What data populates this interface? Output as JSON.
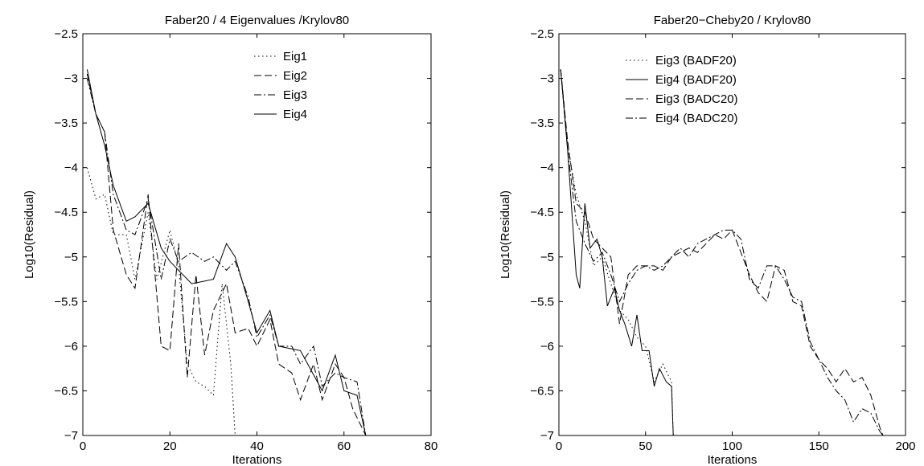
{
  "chart_data": [
    {
      "type": "line",
      "title": "Faber20 / 4 Eigenvalues /Krylov80",
      "xlabel": "Iterations",
      "ylabel": "Log10(Residual)",
      "xlim": [
        0,
        80
      ],
      "ylim": [
        -7,
        -2.5
      ],
      "xticks": [
        0,
        20,
        40,
        60,
        80
      ],
      "yticks": [
        -2.5,
        -3,
        -3.5,
        -4,
        -4.5,
        -5,
        -5.5,
        -6,
        -6.5,
        -7
      ],
      "grid": false,
      "legend_position": "top-right",
      "series": [
        {
          "name": "Eig1",
          "style": "dotted",
          "x": [
            1,
            3,
            5,
            7,
            10,
            12,
            15,
            17,
            20,
            22,
            24,
            26,
            28,
            30,
            32,
            34,
            35
          ],
          "y": [
            -4.0,
            -4.35,
            -4.3,
            -4.75,
            -4.75,
            -5.25,
            -4.5,
            -5.25,
            -4.7,
            -5.1,
            -6.2,
            -6.4,
            -6.45,
            -6.55,
            -5.3,
            -6.2,
            -7.0
          ]
        },
        {
          "name": "Eig2",
          "style": "dashed",
          "x": [
            1,
            3,
            5,
            7,
            10,
            12,
            15,
            18,
            20,
            22,
            24,
            26,
            28,
            30,
            33,
            35,
            38,
            40,
            43,
            45,
            48,
            50,
            53,
            55,
            58,
            60,
            62,
            65
          ],
          "y": [
            -2.95,
            -3.4,
            -3.6,
            -4.7,
            -5.2,
            -5.35,
            -4.3,
            -6.0,
            -6.05,
            -4.85,
            -6.35,
            -5.2,
            -6.1,
            -5.6,
            -5.3,
            -5.85,
            -5.8,
            -6.0,
            -5.7,
            -6.2,
            -6.3,
            -6.6,
            -6.2,
            -6.6,
            -6.2,
            -6.35,
            -6.7,
            -7.0
          ]
        },
        {
          "name": "Eig3",
          "style": "dashdot",
          "x": [
            1,
            3,
            5,
            7,
            10,
            12,
            15,
            18,
            20,
            22,
            25,
            28,
            30,
            33,
            35,
            38,
            40,
            43,
            45,
            48,
            50,
            53,
            55,
            58,
            60,
            63,
            65
          ],
          "y": [
            -3.0,
            -3.4,
            -3.6,
            -4.3,
            -4.7,
            -4.75,
            -4.35,
            -5.25,
            -4.8,
            -5.05,
            -4.95,
            -5.05,
            -5.0,
            -5.15,
            -5.05,
            -5.45,
            -5.9,
            -5.65,
            -6.0,
            -6.0,
            -6.2,
            -6.0,
            -6.45,
            -6.3,
            -6.35,
            -6.4,
            -7.0
          ]
        },
        {
          "name": "Eig4",
          "style": "solid",
          "x": [
            1,
            3,
            5,
            7,
            10,
            12,
            15,
            18,
            20,
            25,
            30,
            33,
            35,
            38,
            40,
            43,
            45,
            50,
            55,
            58,
            60,
            63,
            65
          ],
          "y": [
            -2.9,
            -3.4,
            -3.75,
            -4.2,
            -4.6,
            -4.55,
            -4.4,
            -4.9,
            -5.05,
            -5.3,
            -5.25,
            -4.85,
            -5.0,
            -5.5,
            -5.85,
            -5.6,
            -6.0,
            -6.05,
            -6.5,
            -6.1,
            -6.5,
            -6.55,
            -7.0
          ]
        }
      ]
    },
    {
      "type": "line",
      "title": "Faber20−Cheby20 / Krylov80",
      "xlabel": "Iterations",
      "ylabel": "Log10(Residual)",
      "xlim": [
        0,
        200
      ],
      "ylim": [
        -7,
        -2.5
      ],
      "xticks": [
        0,
        50,
        100,
        150,
        200
      ],
      "yticks": [
        -2.5,
        -3,
        -3.5,
        -4,
        -4.5,
        -5,
        -5.5,
        -6,
        -6.5,
        -7
      ],
      "grid": false,
      "legend_position": "top-right",
      "series": [
        {
          "name": "Eig3 (BADF20)",
          "style": "dotted",
          "x": [
            1,
            5,
            10,
            15,
            20,
            25,
            30,
            35,
            40,
            45,
            50,
            55,
            60,
            65,
            66
          ],
          "y": [
            -2.9,
            -3.75,
            -4.3,
            -4.6,
            -5.1,
            -5.0,
            -5.3,
            -5.6,
            -5.7,
            -5.9,
            -6.0,
            -6.4,
            -6.2,
            -6.4,
            -7.0
          ]
        },
        {
          "name": "Eig4 (BADF20)",
          "style": "solid",
          "x": [
            1,
            5,
            10,
            12,
            15,
            18,
            22,
            25,
            28,
            32,
            35,
            38,
            42,
            45,
            48,
            52,
            55,
            58,
            62,
            65,
            66
          ],
          "y": [
            -2.9,
            -3.8,
            -5.2,
            -5.35,
            -4.4,
            -4.9,
            -4.8,
            -5.0,
            -5.55,
            -5.35,
            -5.6,
            -5.75,
            -6.0,
            -5.65,
            -6.05,
            -6.05,
            -6.45,
            -6.25,
            -6.4,
            -6.45,
            -7.0
          ]
        },
        {
          "name": "Eig3 (BADC20)",
          "style": "dashed",
          "x": [
            1,
            5,
            10,
            15,
            20,
            25,
            30,
            35,
            40,
            45,
            50,
            55,
            60,
            65,
            70,
            75,
            80,
            85,
            90,
            95,
            100,
            105,
            110,
            115,
            120,
            125,
            130,
            135,
            140,
            145,
            150,
            155,
            160,
            165,
            170,
            175,
            180,
            185,
            187
          ],
          "y": [
            -2.9,
            -3.7,
            -4.4,
            -4.5,
            -4.8,
            -4.9,
            -5.0,
            -5.75,
            -5.2,
            -5.1,
            -5.1,
            -5.1,
            -5.15,
            -5.0,
            -4.95,
            -4.9,
            -4.95,
            -4.85,
            -4.75,
            -4.8,
            -4.7,
            -4.95,
            -5.2,
            -5.4,
            -5.5,
            -5.1,
            -5.15,
            -5.5,
            -5.55,
            -6.0,
            -6.15,
            -6.25,
            -6.4,
            -6.25,
            -6.4,
            -6.35,
            -6.55,
            -6.9,
            -7.0
          ]
        },
        {
          "name": "Eig4 (BADC20)",
          "style": "dashdot",
          "x": [
            1,
            5,
            10,
            15,
            20,
            25,
            30,
            35,
            40,
            45,
            50,
            55,
            60,
            65,
            70,
            75,
            80,
            85,
            90,
            95,
            100,
            105,
            110,
            115,
            120,
            125,
            130,
            135,
            140,
            145,
            150,
            155,
            160,
            165,
            170,
            175,
            180,
            185,
            187
          ],
          "y": [
            -2.9,
            -3.8,
            -4.6,
            -4.85,
            -5.05,
            -4.95,
            -5.2,
            -5.5,
            -5.3,
            -5.15,
            -5.1,
            -5.15,
            -5.1,
            -5.0,
            -4.9,
            -5.0,
            -4.85,
            -4.8,
            -4.75,
            -4.7,
            -4.7,
            -4.8,
            -5.25,
            -5.35,
            -5.1,
            -5.1,
            -5.25,
            -5.45,
            -5.5,
            -5.95,
            -6.15,
            -6.35,
            -6.5,
            -6.6,
            -6.85,
            -6.7,
            -6.75,
            -6.95,
            -7.0
          ]
        }
      ]
    }
  ]
}
